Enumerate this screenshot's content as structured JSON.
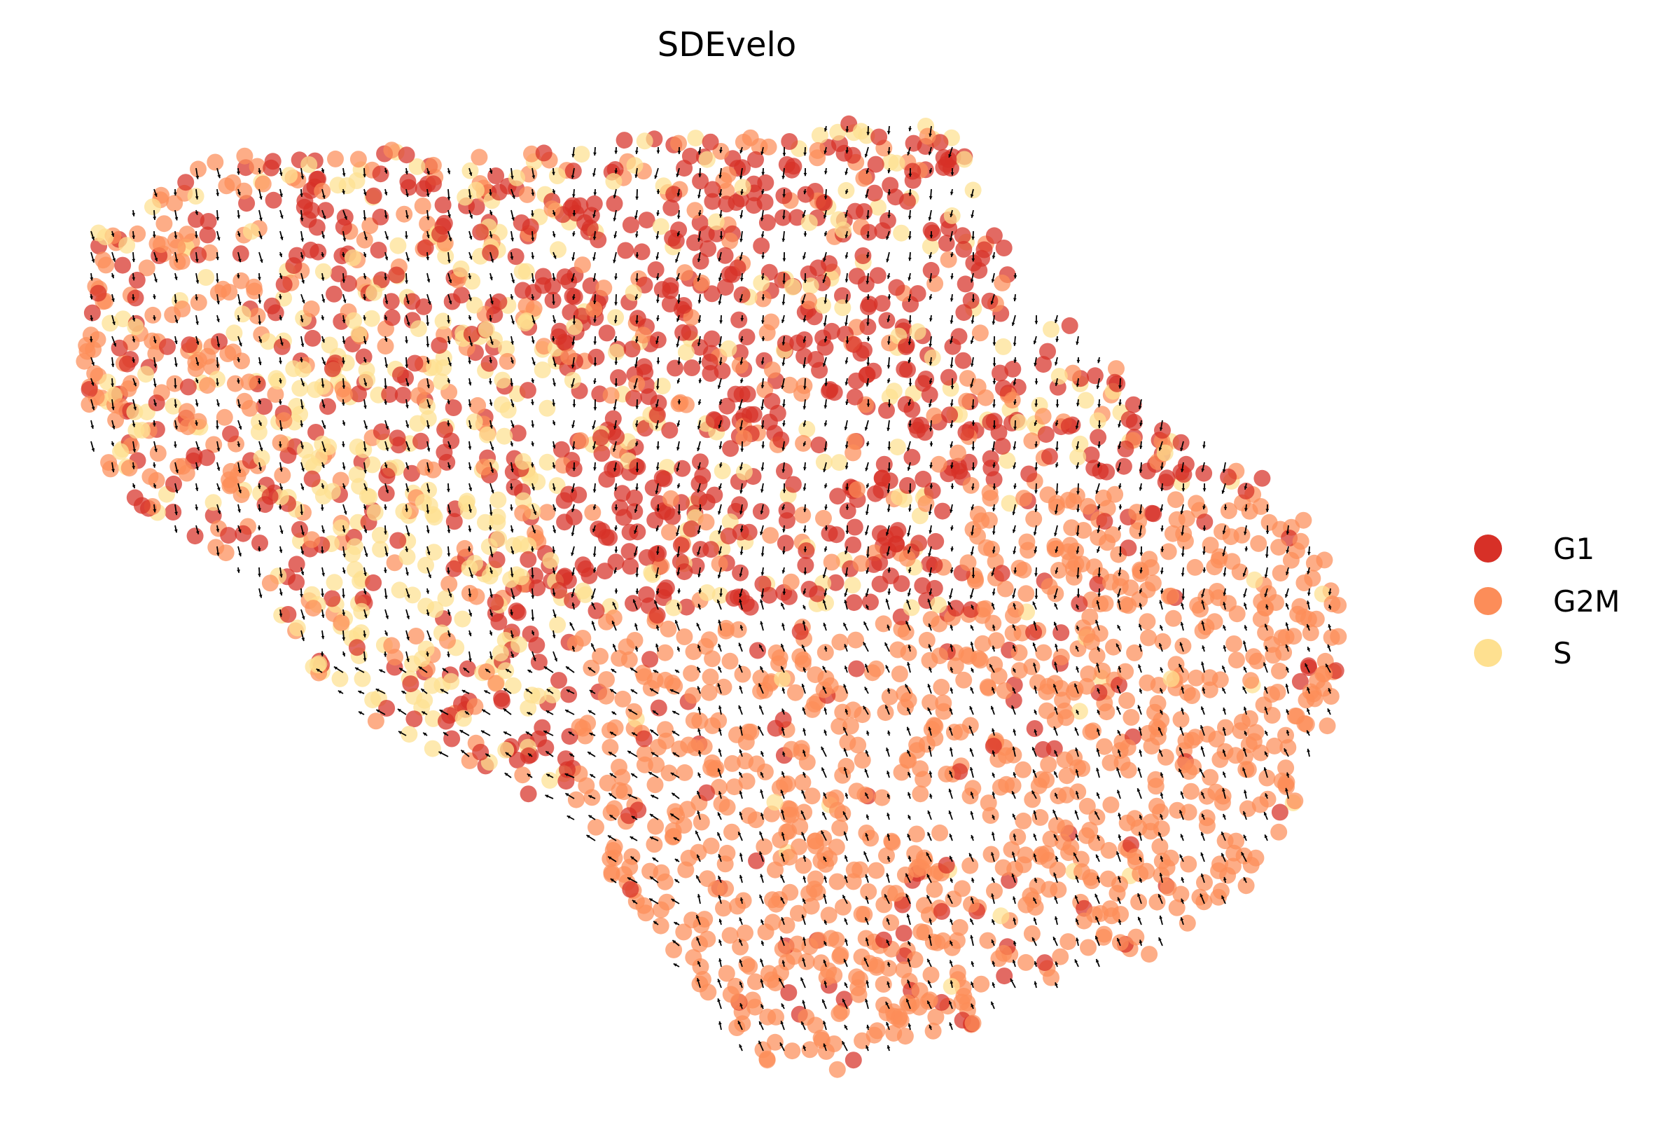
{
  "chart_data": {
    "type": "scatter",
    "title": "SDEvelo",
    "xlabel": "",
    "ylabel": "",
    "axes_visible": false,
    "grid": false,
    "legend_position": "right",
    "overlay": "velocity stream arrows (grid)",
    "series": [
      {
        "name": "G1",
        "color": "#d73027",
        "region_description": "upper-middle and central band"
      },
      {
        "name": "G2M",
        "color": "#fc8d59",
        "region_description": "upper-left and lower-right lobes"
      },
      {
        "name": "S",
        "color": "#fee090",
        "region_description": "left-center region"
      }
    ]
  }
}
